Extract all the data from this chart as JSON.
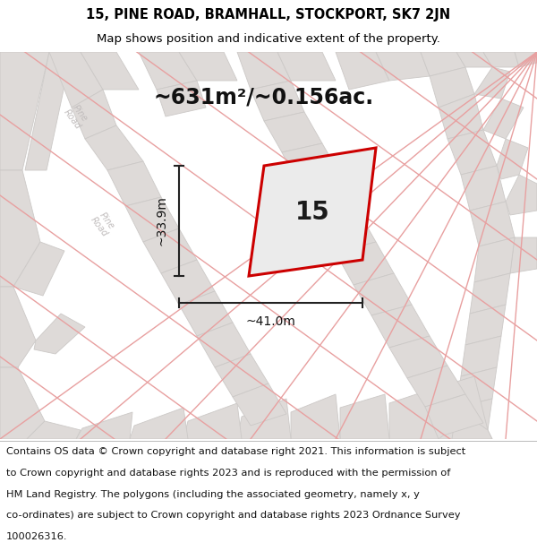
{
  "title": "15, PINE ROAD, BRAMHALL, STOCKPORT, SK7 2JN",
  "subtitle": "Map shows position and indicative extent of the property.",
  "area_label": "~631m²/~0.156ac.",
  "plot_number": "15",
  "dim_width": "~41.0m",
  "dim_height": "~33.9m",
  "map_bg": "#f0eeee",
  "road_fill_light": "#e8e6e6",
  "road_fill_dark": "#d8d6d6",
  "pink_road_color": "#e8a0a0",
  "plot_outline_color": "#cc0000",
  "plot_fill_color": "#f0eeee",
  "dim_line_color": "#222222",
  "road_label_color": "#c0bcbc",
  "title_fontsize": 10.5,
  "subtitle_fontsize": 9.5,
  "area_fontsize": 17,
  "plot_num_fontsize": 20,
  "dim_fontsize": 10,
  "footer_fontsize": 8.2,
  "footer_lines": [
    "Contains OS data © Crown copyright and database right 2021. This information is subject",
    "to Crown copyright and database rights 2023 and is reproduced with the permission of",
    "HM Land Registry. The polygons (including the associated geometry, namely x, y",
    "co-ordinates) are subject to Crown copyright and database rights 2023 Ordnance Survey",
    "100026316."
  ]
}
